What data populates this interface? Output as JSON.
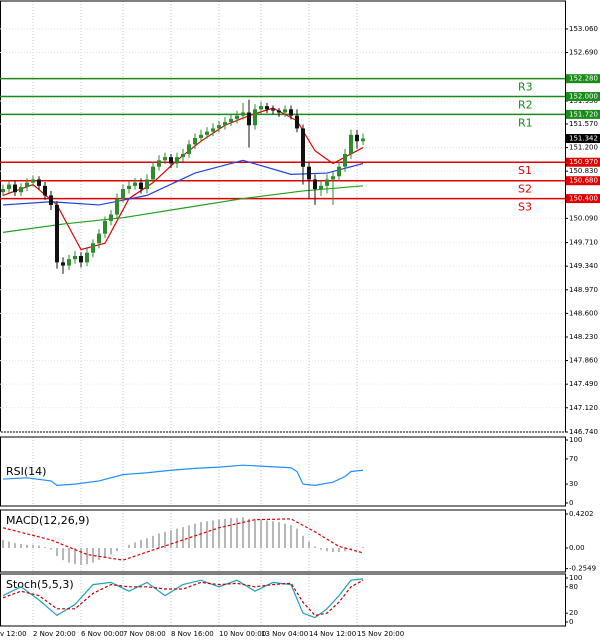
{
  "chart_data": [
    {
      "type": "candlestick",
      "xlim": [
        -0.5,
        93.67
      ],
      "xticks": [
        {
          "value": -0.5,
          "label": "v 12:00"
        },
        {
          "value": 5,
          "label": "2 Nov 20:00"
        },
        {
          "value": 13,
          "label": "6 Nov 00:00"
        },
        {
          "value": 20,
          "label": "7 Nov 08:00"
        },
        {
          "value": 28,
          "label": "8 Nov 16:00"
        },
        {
          "value": 36,
          "label": "10 Nov 00:00"
        },
        {
          "value": 43,
          "label": "13 Nov 04:00"
        },
        {
          "value": 51,
          "label": "14 Nov 12:00"
        },
        {
          "value": 59,
          "label": "15 Nov 20:00"
        }
      ],
      "ylim": [
        146.74,
        153.498
      ],
      "yticks": [
        {
          "value": 153.06,
          "label": "153.060"
        },
        {
          "value": 152.69,
          "label": "152.690"
        },
        {
          "value": 151.93,
          "label": "151.930"
        },
        {
          "value": 151.57,
          "label": "151.570"
        },
        {
          "value": 151.2,
          "label": "151.200"
        },
        {
          "value": 150.83,
          "label": "150.830"
        },
        {
          "value": 150.09,
          "label": "150.090"
        },
        {
          "value": 149.71,
          "label": "149.710"
        },
        {
          "value": 149.34,
          "label": "149.340"
        },
        {
          "value": 148.97,
          "label": "148.970"
        },
        {
          "value": 148.6,
          "label": "148.600"
        },
        {
          "value": 148.23,
          "label": "148.230"
        },
        {
          "value": 147.86,
          "label": "147.860"
        },
        {
          "value": 147.49,
          "label": "147.490"
        },
        {
          "value": 147.12,
          "label": "147.120"
        },
        {
          "value": 146.74,
          "label": "146.740"
        }
      ],
      "grid": true,
      "up_color": "#2e8b2e",
      "down_color": "#111111",
      "open": [
        150.5,
        150.55,
        150.62,
        150.5,
        150.58,
        150.65,
        150.7,
        150.6,
        150.45,
        150.3,
        149.4,
        149.35,
        149.45,
        149.5,
        149.4,
        149.55,
        149.7,
        149.85,
        150.05,
        150.15,
        150.4,
        150.55,
        150.6,
        150.65,
        150.55,
        150.7,
        150.9,
        151.0,
        151.05,
        150.95,
        151.05,
        151.1,
        151.25,
        151.35,
        151.4,
        151.45,
        151.5,
        151.55,
        151.6,
        151.65,
        151.7,
        151.75,
        151.55,
        151.8,
        151.85,
        151.8,
        151.78,
        151.75,
        151.8,
        151.7,
        151.5,
        150.9,
        150.7,
        150.55,
        150.6,
        150.7,
        150.75,
        150.9,
        151.1,
        151.4,
        151.3
      ],
      "high": [
        150.62,
        150.68,
        150.68,
        150.64,
        150.72,
        150.76,
        150.75,
        150.66,
        150.52,
        150.36,
        149.48,
        149.52,
        149.58,
        149.56,
        149.62,
        149.76,
        149.92,
        150.12,
        150.22,
        150.48,
        150.62,
        150.68,
        150.72,
        150.72,
        150.78,
        150.98,
        151.08,
        151.12,
        151.1,
        151.12,
        151.18,
        151.32,
        151.42,
        151.48,
        151.52,
        151.58,
        151.62,
        151.68,
        151.72,
        151.78,
        151.9,
        151.95,
        151.88,
        151.92,
        151.9,
        151.86,
        151.82,
        151.86,
        151.86,
        151.8,
        151.56,
        150.96,
        150.78,
        150.68,
        150.78,
        150.82,
        150.98,
        151.18,
        151.48,
        151.48,
        151.42
      ],
      "low": [
        150.44,
        150.49,
        150.44,
        150.44,
        150.52,
        150.59,
        150.54,
        150.38,
        150.22,
        149.3,
        149.22,
        149.28,
        149.38,
        149.32,
        149.34,
        149.48,
        149.62,
        149.78,
        149.98,
        150.08,
        150.34,
        150.48,
        150.54,
        150.48,
        150.48,
        150.64,
        150.84,
        150.94,
        150.88,
        150.88,
        150.98,
        151.04,
        151.18,
        151.28,
        151.34,
        151.38,
        151.44,
        151.48,
        151.54,
        151.58,
        151.64,
        151.2,
        151.48,
        151.72,
        151.74,
        151.72,
        151.68,
        151.68,
        151.64,
        151.44,
        150.62,
        150.4,
        150.3,
        150.44,
        150.48,
        150.3,
        150.68,
        150.82,
        151.02,
        151.18,
        151.24
      ],
      "close": [
        150.55,
        150.62,
        150.5,
        150.58,
        150.65,
        150.7,
        150.6,
        150.45,
        150.3,
        149.4,
        149.35,
        149.45,
        149.5,
        149.4,
        149.55,
        149.7,
        149.85,
        150.05,
        150.15,
        150.4,
        150.55,
        150.6,
        150.65,
        150.55,
        150.7,
        150.9,
        151.0,
        151.05,
        150.95,
        151.05,
        151.1,
        151.25,
        151.35,
        151.4,
        151.45,
        151.5,
        151.55,
        151.6,
        151.65,
        151.7,
        151.75,
        151.55,
        151.8,
        151.85,
        151.8,
        151.78,
        151.75,
        151.8,
        151.7,
        151.5,
        150.9,
        150.7,
        150.55,
        150.6,
        150.7,
        150.75,
        150.9,
        151.1,
        151.4,
        151.3,
        151.342
      ],
      "series": [
        {
          "color": "#e00000",
          "x": [
            0,
            5,
            9,
            13,
            17,
            21,
            25,
            29,
            33,
            37,
            41,
            45,
            49,
            52,
            55,
            58,
            60
          ],
          "values": [
            150.45,
            150.62,
            150.3,
            149.6,
            149.7,
            150.4,
            150.65,
            151.0,
            151.3,
            151.55,
            151.7,
            151.82,
            151.62,
            151.15,
            150.95,
            151.1,
            151.2
          ]
        },
        {
          "color": "#2040e0",
          "x": [
            0,
            8,
            16,
            24,
            32,
            40,
            48,
            54,
            60
          ],
          "values": [
            150.3,
            150.35,
            150.3,
            150.45,
            150.8,
            151.0,
            150.78,
            150.8,
            150.95
          ]
        },
        {
          "color": "#20a020",
          "x": [
            0,
            10,
            20,
            30,
            40,
            50,
            60
          ],
          "values": [
            149.87,
            150.0,
            150.1,
            150.25,
            150.4,
            150.52,
            150.6
          ]
        }
      ],
      "levels": [
        {
          "name": "R3",
          "value": 152.28,
          "label": "152.280",
          "color": "#1a8a1a"
        },
        {
          "name": "R2",
          "value": 152.0,
          "label": "152.000",
          "color": "#1a8a1a"
        },
        {
          "name": "R1",
          "value": 151.72,
          "label": "151.720",
          "color": "#1a8a1a"
        },
        {
          "name": "S1",
          "value": 150.97,
          "label": "150.970",
          "color": "#e00000"
        },
        {
          "name": "S2",
          "value": 150.68,
          "label": "150.680",
          "color": "#e00000"
        },
        {
          "name": "S3",
          "value": 150.4,
          "label": "150.400",
          "color": "#e00000"
        }
      ],
      "last_price": {
        "value": 151.342,
        "label": "151.342"
      }
    },
    {
      "type": "line",
      "title": "RSI(14)",
      "ylim": [
        -4.8,
        104.8
      ],
      "yticks": [
        100,
        70,
        30,
        0
      ],
      "series": [
        {
          "color": "#1e90ff",
          "x": [
            0,
            4,
            8,
            9,
            12,
            16,
            20,
            24,
            28,
            32,
            36,
            40,
            44,
            48,
            49,
            50,
            52,
            55,
            57,
            58,
            60
          ],
          "values": [
            38,
            40,
            35,
            28,
            30,
            35,
            45,
            48,
            52,
            55,
            57,
            60,
            58,
            56,
            50,
            30,
            28,
            33,
            42,
            50,
            52
          ]
        }
      ]
    },
    {
      "type": "macd",
      "title": "MACD(12,26,9)",
      "ylim": [
        -0.2966,
        0.4696
      ],
      "yticks": [
        0.4202,
        {
          "value": 0,
          "label": "0.00"
        },
        -0.2549
      ],
      "color": "#a0a0a0",
      "values": [
        0.1,
        0.08,
        0.06,
        0.05,
        0.04,
        0.04,
        0.03,
        0.01,
        -0.02,
        -0.1,
        -0.15,
        -0.18,
        -0.2,
        -0.21,
        -0.2,
        -0.18,
        -0.15,
        -0.12,
        -0.08,
        -0.04,
        0.0,
        0.04,
        0.07,
        0.1,
        0.12,
        0.15,
        0.18,
        0.2,
        0.22,
        0.24,
        0.26,
        0.28,
        0.3,
        0.32,
        0.33,
        0.34,
        0.35,
        0.36,
        0.37,
        0.37,
        0.38,
        0.36,
        0.36,
        0.35,
        0.34,
        0.33,
        0.32,
        0.3,
        0.28,
        0.24,
        0.15,
        0.08,
        0.02,
        -0.02,
        -0.04,
        -0.05,
        -0.05,
        -0.04,
        -0.02,
        0.0,
        0.01
      ],
      "series": [
        {
          "color": "#e00000",
          "dash": true,
          "x": [
            0,
            8,
            14,
            20,
            28,
            36,
            42,
            48,
            52,
            56,
            60
          ],
          "values": [
            0.25,
            0.1,
            -0.08,
            -0.15,
            0.05,
            0.25,
            0.35,
            0.36,
            0.2,
            0.02,
            -0.06
          ]
        }
      ]
    },
    {
      "type": "line",
      "title": "Stoch(5,5,3)",
      "ylim": [
        -9.1,
        109.1
      ],
      "yticks": [
        100,
        80,
        20,
        0
      ],
      "series": [
        {
          "color": "#20a0c0",
          "x": [
            0,
            3,
            6,
            9,
            12,
            15,
            18,
            21,
            24,
            27,
            30,
            33,
            36,
            39,
            42,
            45,
            48,
            50,
            52,
            54,
            56,
            58,
            60
          ],
          "values": [
            60,
            80,
            50,
            15,
            40,
            85,
            90,
            70,
            90,
            60,
            85,
            95,
            80,
            95,
            70,
            90,
            85,
            20,
            10,
            30,
            60,
            95,
            98
          ]
        },
        {
          "color": "#c00000",
          "dash": true,
          "x": [
            0,
            3,
            6,
            9,
            12,
            15,
            18,
            21,
            24,
            27,
            30,
            33,
            36,
            39,
            42,
            45,
            48,
            50,
            52,
            54,
            56,
            58,
            60
          ],
          "values": [
            55,
            70,
            60,
            30,
            30,
            65,
            85,
            80,
            80,
            75,
            75,
            90,
            85,
            88,
            80,
            85,
            88,
            45,
            15,
            20,
            45,
            80,
            95
          ]
        }
      ]
    }
  ]
}
